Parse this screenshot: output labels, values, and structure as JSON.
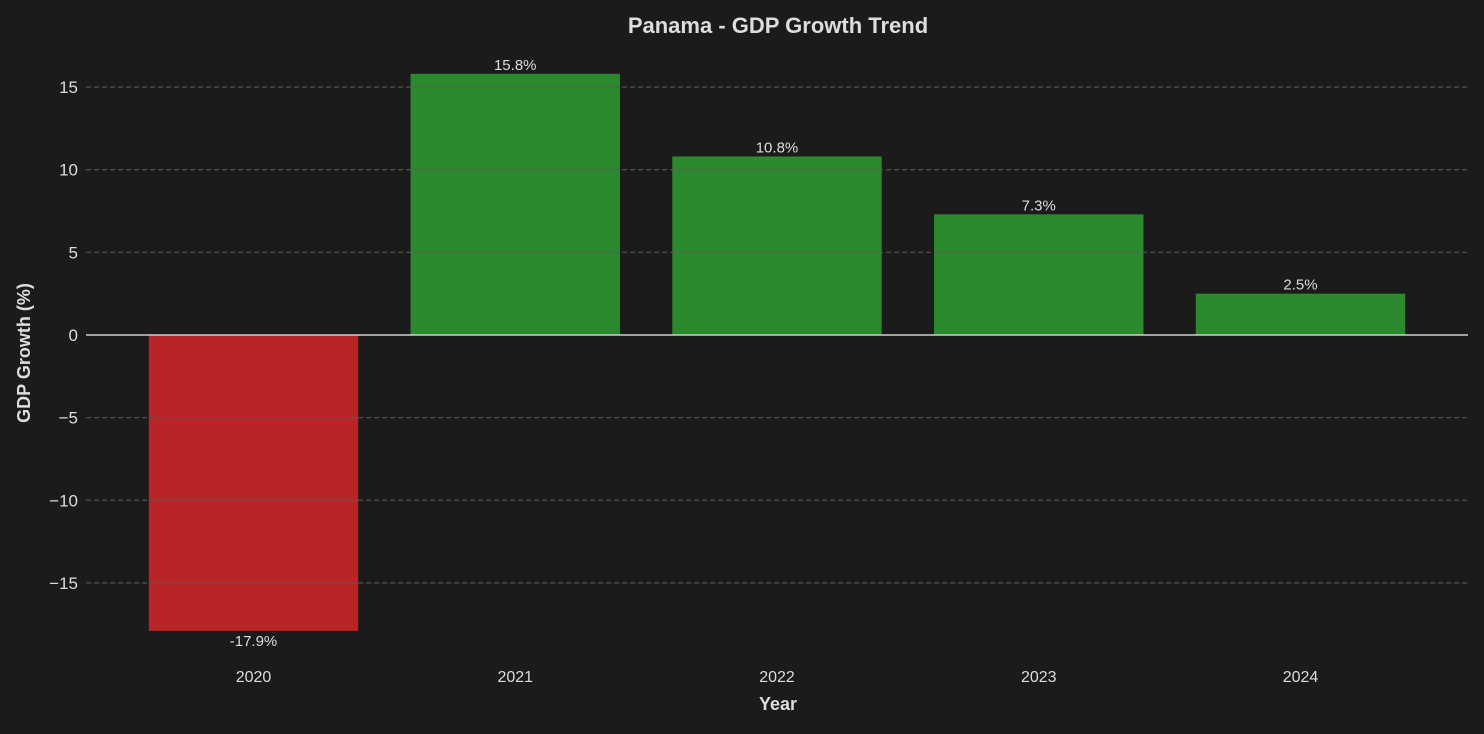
{
  "chart_data": {
    "type": "bar",
    "title": "Panama - GDP Growth Trend",
    "xlabel": "Year",
    "ylabel": "GDP Growth (%)",
    "categories": [
      "2020",
      "2021",
      "2022",
      "2023",
      "2024"
    ],
    "values": [
      -17.9,
      15.8,
      10.8,
      7.3,
      2.5
    ],
    "data_labels": [
      "-17.9%",
      "15.8%",
      "10.8%",
      "7.3%",
      "2.5%"
    ],
    "ylim": [
      -19.6,
      16.5
    ],
    "yticks": [
      -15,
      -10,
      -5,
      0,
      5,
      10,
      15
    ],
    "ytick_labels": [
      "−15",
      "−10",
      "−5",
      "0",
      "5",
      "10",
      "15"
    ],
    "grid": "y, dashed",
    "colors": {
      "positive": "#2b8a2e",
      "negative": "#b92427",
      "background": "#1b1b1b",
      "text": "#dddddd",
      "grid": "#5a5a5a",
      "zero_line": "#d0d0d0"
    }
  }
}
